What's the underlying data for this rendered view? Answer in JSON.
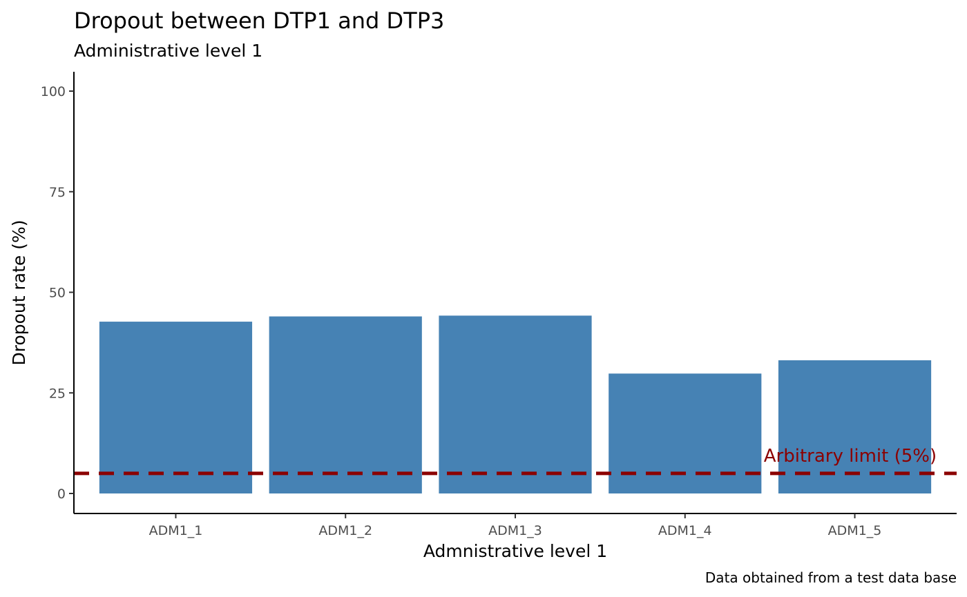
{
  "chart_data": {
    "type": "bar",
    "title": "Dropout between DTP1 and DTP3",
    "subtitle": "Administrative level 1",
    "xlabel": "Admnistrative level 1",
    "ylabel": "Dropout rate (%)",
    "caption": "Data obtained from a test data base",
    "categories": [
      "ADM1_1",
      "ADM1_2",
      "ADM1_3",
      "ADM1_4",
      "ADM1_5"
    ],
    "values": [
      42.7,
      44.0,
      44.2,
      29.8,
      33.1
    ],
    "ylim": [
      0,
      100
    ],
    "yticks": [
      0,
      25,
      50,
      75,
      100
    ],
    "grid": false,
    "legend": "none",
    "bar_color": "#4682B4",
    "reference_line": {
      "value": 5,
      "style": "dashed",
      "color": "#8B0000",
      "label": "Arbitrary limit (5%)"
    }
  }
}
